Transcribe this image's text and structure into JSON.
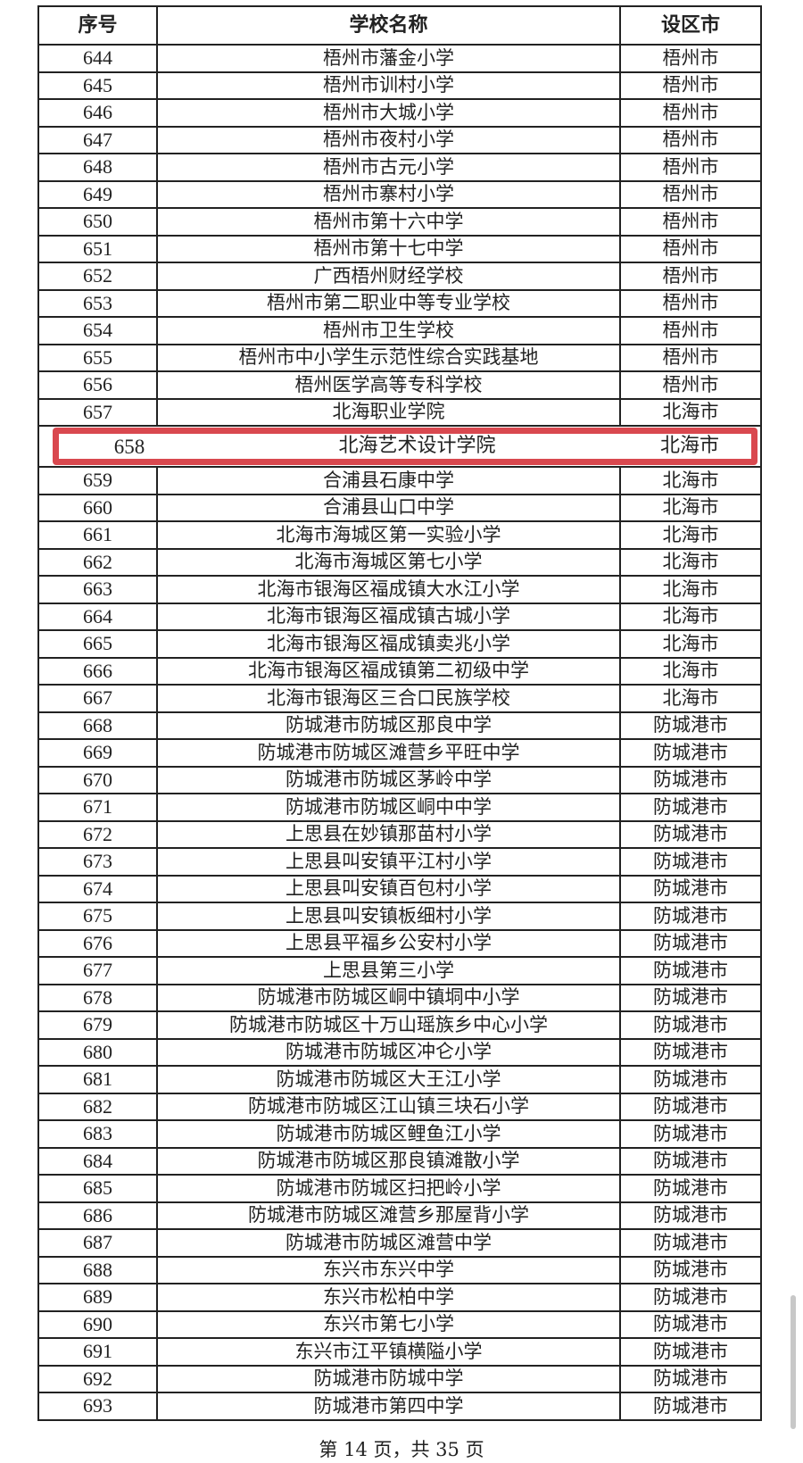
{
  "table": {
    "headers": [
      "序号",
      "学校名称",
      "设区市"
    ],
    "rows": [
      [
        "644",
        "梧州市藩金小学",
        "梧州市"
      ],
      [
        "645",
        "梧州市训村小学",
        "梧州市"
      ],
      [
        "646",
        "梧州市大城小学",
        "梧州市"
      ],
      [
        "647",
        "梧州市夜村小学",
        "梧州市"
      ],
      [
        "648",
        "梧州市古元小学",
        "梧州市"
      ],
      [
        "649",
        "梧州市寨村小学",
        "梧州市"
      ],
      [
        "650",
        "梧州市第十六中学",
        "梧州市"
      ],
      [
        "651",
        "梧州市第十七中学",
        "梧州市"
      ],
      [
        "652",
        "广西梧州财经学校",
        "梧州市"
      ],
      [
        "653",
        "梧州市第二职业中等专业学校",
        "梧州市"
      ],
      [
        "654",
        "梧州市卫生学校",
        "梧州市"
      ],
      [
        "655",
        "梧州市中小学生示范性综合实践基地",
        "梧州市"
      ],
      [
        "656",
        "梧州医学高等专科学校",
        "梧州市"
      ],
      [
        "657",
        "北海职业学院",
        "北海市"
      ],
      [
        "658",
        "北海艺术设计学院",
        "北海市"
      ],
      [
        "659",
        "合浦县石康中学",
        "北海市"
      ],
      [
        "660",
        "合浦县山口中学",
        "北海市"
      ],
      [
        "661",
        "北海市海城区第一实验小学",
        "北海市"
      ],
      [
        "662",
        "北海市海城区第七小学",
        "北海市"
      ],
      [
        "663",
        "北海市银海区福成镇大水江小学",
        "北海市"
      ],
      [
        "664",
        "北海市银海区福成镇古城小学",
        "北海市"
      ],
      [
        "665",
        "北海市银海区福成镇卖兆小学",
        "北海市"
      ],
      [
        "666",
        "北海市银海区福成镇第二初级中学",
        "北海市"
      ],
      [
        "667",
        "北海市银海区三合口民族学校",
        "北海市"
      ],
      [
        "668",
        "防城港市防城区那良中学",
        "防城港市"
      ],
      [
        "669",
        "防城港市防城区滩营乡平旺中学",
        "防城港市"
      ],
      [
        "670",
        "防城港市防城区茅岭中学",
        "防城港市"
      ],
      [
        "671",
        "防城港市防城区峒中中学",
        "防城港市"
      ],
      [
        "672",
        "上思县在妙镇那苗村小学",
        "防城港市"
      ],
      [
        "673",
        "上思县叫安镇平江村小学",
        "防城港市"
      ],
      [
        "674",
        "上思县叫安镇百包村小学",
        "防城港市"
      ],
      [
        "675",
        "上思县叫安镇板细村小学",
        "防城港市"
      ],
      [
        "676",
        "上思县平福乡公安村小学",
        "防城港市"
      ],
      [
        "677",
        "上思县第三小学",
        "防城港市"
      ],
      [
        "678",
        "防城港市防城区峒中镇垌中小学",
        "防城港市"
      ],
      [
        "679",
        "防城港市防城区十万山瑶族乡中心小学",
        "防城港市"
      ],
      [
        "680",
        "防城港市防城区冲仑小学",
        "防城港市"
      ],
      [
        "681",
        "防城港市防城区大王江小学",
        "防城港市"
      ],
      [
        "682",
        "防城港市防城区江山镇三块石小学",
        "防城港市"
      ],
      [
        "683",
        "防城港市防城区鲤鱼江小学",
        "防城港市"
      ],
      [
        "684",
        "防城港市防城区那良镇滩散小学",
        "防城港市"
      ],
      [
        "685",
        "防城港市防城区扫把岭小学",
        "防城港市"
      ],
      [
        "686",
        "防城港市防城区滩营乡那屋背小学",
        "防城港市"
      ],
      [
        "687",
        "防城港市防城区滩营中学",
        "防城港市"
      ],
      [
        "688",
        "东兴市东兴中学",
        "防城港市"
      ],
      [
        "689",
        "东兴市松柏中学",
        "防城港市"
      ],
      [
        "690",
        "东兴市第七小学",
        "防城港市"
      ],
      [
        "691",
        "东兴市江平镇横隘小学",
        "防城港市"
      ],
      [
        "692",
        "防城港市防城中学",
        "防城港市"
      ],
      [
        "693",
        "防城港市第四中学",
        "防城港市"
      ]
    ]
  },
  "highlight": {
    "number": "658",
    "name": "北海艺术设计学院",
    "city": "北海市",
    "color": "#d9484f"
  },
  "footer": {
    "page_text": "第 14 页，共 35 页"
  }
}
